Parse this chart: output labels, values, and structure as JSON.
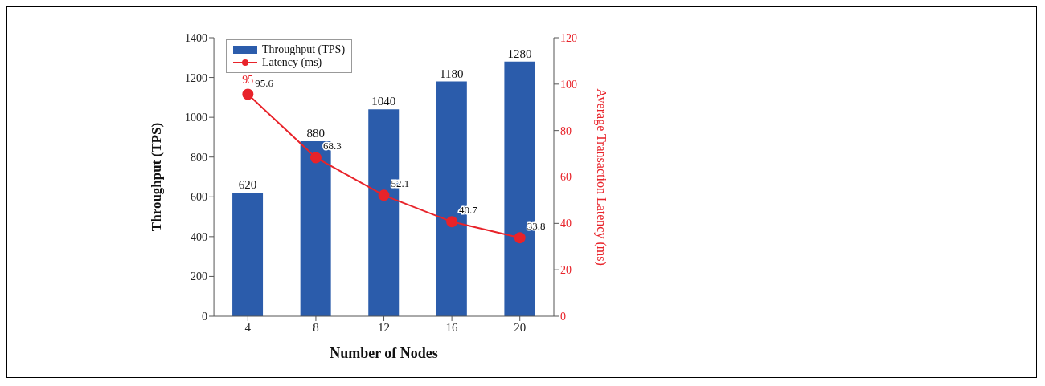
{
  "chart_data": {
    "type": "bar",
    "xlabel": "Number of Nodes",
    "ylabel": "Throughput (TPS)",
    "y2label": "Average Transaction Latency (ms)",
    "categories": [
      "4",
      "8",
      "12",
      "16",
      "20"
    ],
    "series": [
      {
        "name": "Throughput (TPS)",
        "color": "#2b5cab",
        "values": [
          620,
          880,
          1040,
          1180,
          1280
        ]
      },
      {
        "name": "Latency (ms)",
        "type": "line",
        "axis": "y2",
        "color": "#e8232a",
        "values": [
          95.6,
          68.3,
          52.1,
          40.7,
          33.8
        ]
      }
    ],
    "ylim": [
      0,
      1400
    ],
    "yticks": [
      0,
      200,
      400,
      600,
      800,
      1000,
      1200,
      1400
    ],
    "y2lim": [
      0,
      120
    ],
    "y2ticks": [
      0,
      20,
      40,
      60,
      80,
      100,
      120
    ],
    "annotations": [
      "95"
    ],
    "data_labels": true,
    "legend": "top left",
    "marker": "circle",
    "grid": false
  }
}
